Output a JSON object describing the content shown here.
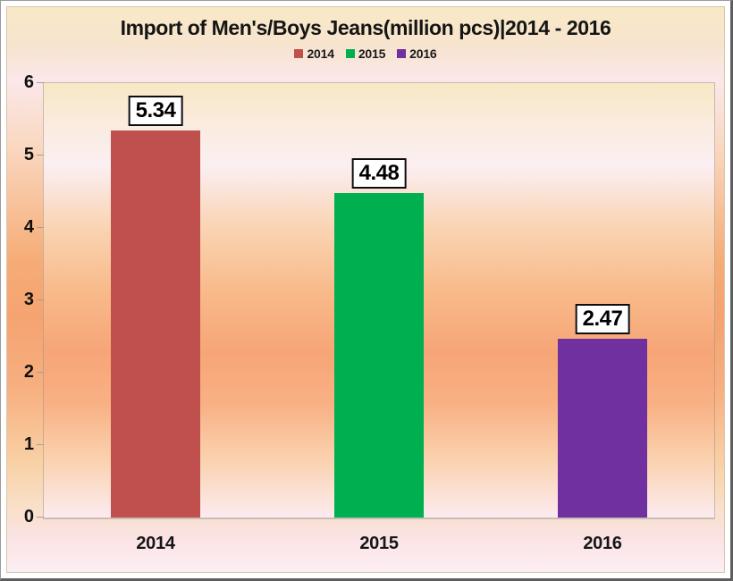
{
  "chart_data": {
    "type": "bar",
    "title": "Import of Men's/Boys Jeans(million pcs)|2014 - 2016",
    "categories": [
      "2014",
      "2015",
      "2016"
    ],
    "values": [
      5.34,
      4.48,
      2.47
    ],
    "value_labels": [
      "5.34",
      "4.48",
      "2.47"
    ],
    "series_colors": [
      "#C0504D",
      "#00AF50",
      "#7030A0"
    ],
    "legend": [
      {
        "label": "2014",
        "color": "#C0504D"
      },
      {
        "label": "2015",
        "color": "#00AF50"
      },
      {
        "label": "2016",
        "color": "#7030A0"
      }
    ],
    "legend_position": "top-center",
    "xlabel": "",
    "ylabel": "",
    "ylim": [
      0,
      6
    ],
    "y_ticks": [
      0,
      1,
      2,
      3,
      4,
      5,
      6
    ],
    "grid": false,
    "background_style": "cream-pink-orange vertical gradient"
  }
}
